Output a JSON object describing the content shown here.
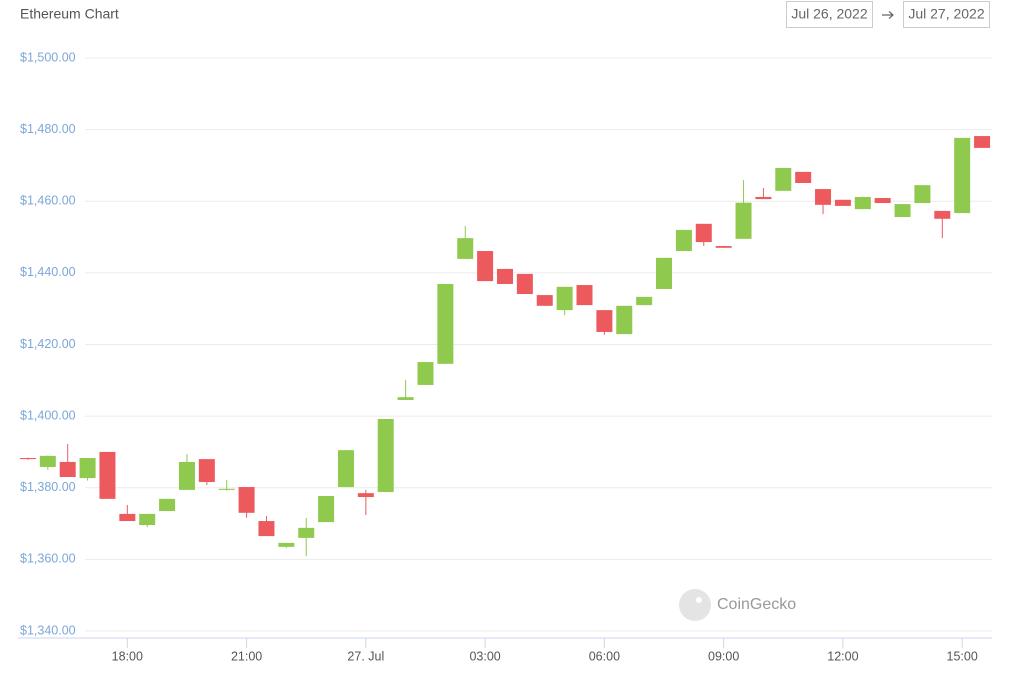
{
  "chart_data": {
    "type": "candlestick",
    "title": "Ethereum Chart",
    "date_range": {
      "start": "Jul 26, 2022",
      "end": "Jul 27, 2022"
    },
    "watermark": "CoinGecko",
    "up_color": "#8fca4e",
    "down_color": "#ec5a5e",
    "x": [
      "2022-07-26T15:30",
      "2022-07-26T16:00",
      "2022-07-26T16:30",
      "2022-07-26T17:00",
      "2022-07-26T17:30",
      "2022-07-26T18:00",
      "2022-07-26T18:30",
      "2022-07-26T19:00",
      "2022-07-26T19:30",
      "2022-07-26T20:00",
      "2022-07-26T20:30",
      "2022-07-26T21:00",
      "2022-07-26T21:30",
      "2022-07-26T22:00",
      "2022-07-26T22:30",
      "2022-07-26T23:00",
      "2022-07-26T23:30",
      "2022-07-27T00:00",
      "2022-07-27T00:30",
      "2022-07-27T01:00",
      "2022-07-27T01:30",
      "2022-07-27T02:00",
      "2022-07-27T02:30",
      "2022-07-27T03:00",
      "2022-07-27T03:30",
      "2022-07-27T04:00",
      "2022-07-27T04:30",
      "2022-07-27T05:00",
      "2022-07-27T05:30",
      "2022-07-27T06:00",
      "2022-07-27T06:30",
      "2022-07-27T07:00",
      "2022-07-27T07:30",
      "2022-07-27T08:00",
      "2022-07-27T08:30",
      "2022-07-27T09:00",
      "2022-07-27T09:30",
      "2022-07-27T10:00",
      "2022-07-27T10:30",
      "2022-07-27T11:00",
      "2022-07-27T11:30",
      "2022-07-27T12:00",
      "2022-07-27T12:30",
      "2022-07-27T13:00",
      "2022-07-27T13:30",
      "2022-07-27T14:00",
      "2022-07-27T14:30",
      "2022-07-27T15:00",
      "2022-07-27T15:30"
    ],
    "open": [
      1388.3,
      1385.8,
      1387.2,
      1382.7,
      1390.0,
      1372.7,
      1369.6,
      1373.5,
      1379.4,
      1388.0,
      1379.4,
      1380.2,
      1370.7,
      1363.5,
      1366.0,
      1370.4,
      1380.2,
      1378.5,
      1378.8,
      1404.5,
      1408.7,
      1414.6,
      1443.9,
      1446.1,
      1441.1,
      1439.7,
      1433.8,
      1429.6,
      1436.6,
      1429.6,
      1422.9,
      1431.0,
      1435.5,
      1446.1,
      1453.7,
      1447.5,
      1449.5,
      1461.2,
      1462.9,
      1468.2,
      1463.4,
      1460.4,
      1457.8,
      1460.9,
      1455.6,
      1459.5,
      1457.3,
      1456.7,
      1478.2
    ],
    "high": [
      1388.4,
      1389.0,
      1392.2,
      1388.3,
      1390.0,
      1375.2,
      1372.7,
      1376.9,
      1389.4,
      1388.0,
      1382.2,
      1380.2,
      1372.1,
      1364.6,
      1371.6,
      1377.7,
      1390.5,
      1379.4,
      1399.2,
      1410.1,
      1415.1,
      1436.9,
      1453.1,
      1446.1,
      1441.1,
      1439.7,
      1433.8,
      1436.1,
      1436.6,
      1429.6,
      1430.8,
      1433.3,
      1444.2,
      1452.0,
      1453.7,
      1447.5,
      1465.9,
      1463.7,
      1469.3,
      1468.2,
      1463.4,
      1460.4,
      1461.2,
      1460.9,
      1459.2,
      1464.5,
      1457.3,
      1477.7,
      1478.2
    ],
    "low": [
      1387.8,
      1385.0,
      1383.0,
      1382.0,
      1376.9,
      1370.7,
      1369.0,
      1373.5,
      1379.4,
      1380.8,
      1379.2,
      1371.6,
      1366.5,
      1363.2,
      1360.9,
      1370.4,
      1380.2,
      1372.4,
      1378.8,
      1404.5,
      1408.7,
      1414.6,
      1443.9,
      1437.7,
      1436.9,
      1434.1,
      1430.8,
      1428.2,
      1431.0,
      1422.7,
      1422.9,
      1431.0,
      1435.5,
      1446.1,
      1447.5,
      1447.0,
      1449.5,
      1460.6,
      1462.9,
      1465.1,
      1456.4,
      1458.7,
      1457.8,
      1459.5,
      1455.6,
      1459.5,
      1449.7,
      1456.7,
      1474.9
    ],
    "close": [
      1388.0,
      1388.9,
      1383.0,
      1388.3,
      1376.9,
      1370.7,
      1372.7,
      1376.9,
      1387.2,
      1381.6,
      1379.7,
      1373.0,
      1366.5,
      1364.6,
      1368.8,
      1377.7,
      1390.5,
      1377.4,
      1399.2,
      1405.3,
      1415.1,
      1436.9,
      1449.7,
      1437.7,
      1436.9,
      1434.1,
      1430.8,
      1436.1,
      1431.0,
      1423.5,
      1430.8,
      1433.3,
      1444.2,
      1452.0,
      1448.6,
      1447.0,
      1459.6,
      1460.6,
      1469.3,
      1465.1,
      1459.0,
      1458.7,
      1461.2,
      1459.5,
      1459.2,
      1464.5,
      1455.1,
      1477.7,
      1474.9
    ],
    "xlim": [
      "2022-07-26T15:15",
      "2022-07-27T15:45"
    ],
    "xticks": [
      {
        "value": "2022-07-26T18:00",
        "label": "18:00"
      },
      {
        "value": "2022-07-26T21:00",
        "label": "21:00"
      },
      {
        "value": "2022-07-27T00:00",
        "label": "27. Jul"
      },
      {
        "value": "2022-07-27T03:00",
        "label": "03:00"
      },
      {
        "value": "2022-07-27T06:00",
        "label": "06:00"
      },
      {
        "value": "2022-07-27T09:00",
        "label": "09:00"
      },
      {
        "value": "2022-07-27T12:00",
        "label": "12:00"
      },
      {
        "value": "2022-07-27T15:00",
        "label": "15:00"
      }
    ],
    "ylim": [
      1340,
      1500
    ],
    "yticks": [
      {
        "value": 1340,
        "label": "$1,340.00"
      },
      {
        "value": 1360,
        "label": "$1,360.00"
      },
      {
        "value": 1380,
        "label": "$1,380.00"
      },
      {
        "value": 1400,
        "label": "$1,400.00"
      },
      {
        "value": 1420,
        "label": "$1,420.00"
      },
      {
        "value": 1440,
        "label": "$1,440.00"
      },
      {
        "value": 1460,
        "label": "$1,460.00"
      },
      {
        "value": 1480,
        "label": "$1,480.00"
      },
      {
        "value": 1500,
        "label": "$1,500.00"
      }
    ],
    "grid": true
  }
}
